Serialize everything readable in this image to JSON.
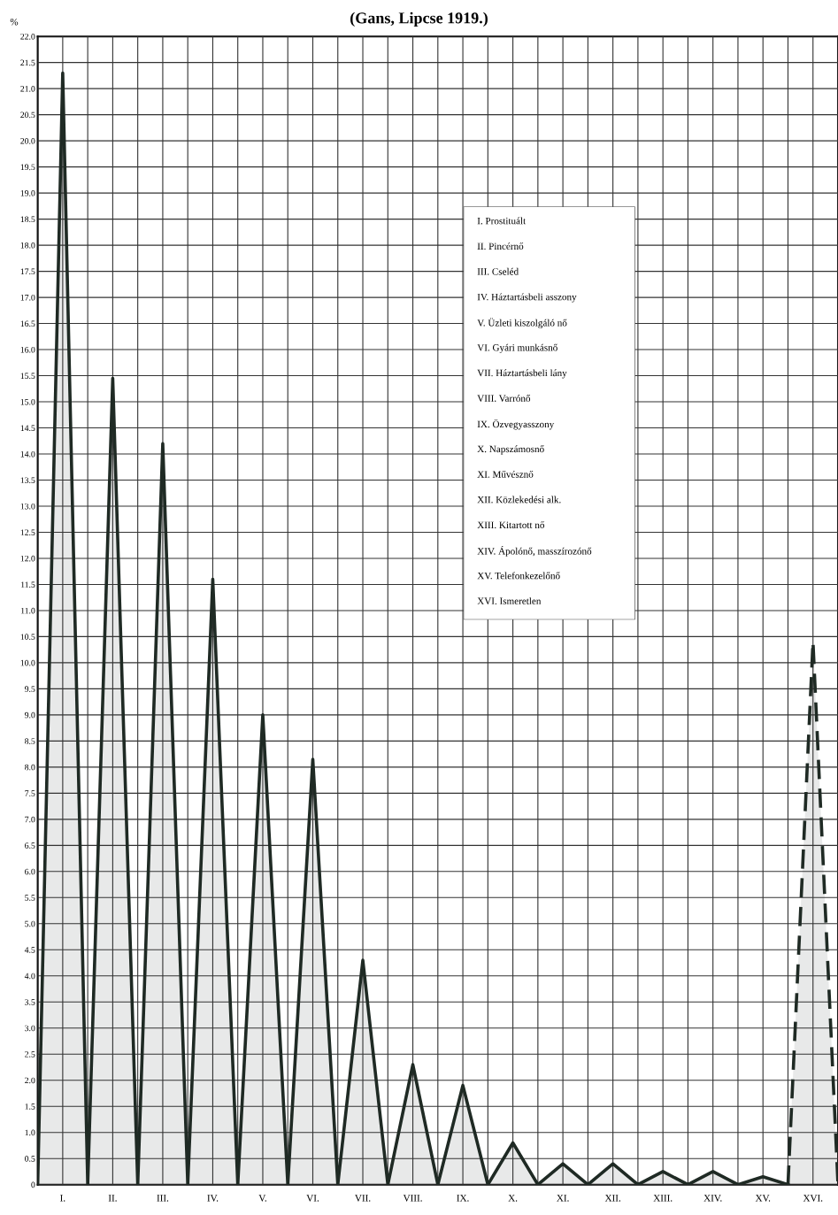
{
  "chart_data": {
    "type": "area",
    "title": "(Gans, Lipcse 1919.)",
    "ylabel": "%",
    "categories": [
      null,
      "I.",
      null,
      "II.",
      null,
      "III.",
      null,
      "IV.",
      null,
      "V.",
      null,
      "VI.",
      null,
      "VII.",
      null,
      "VIII.",
      null,
      "IX.",
      null,
      "X.",
      null,
      "XI.",
      null,
      "XII.",
      null,
      "XIII.",
      null,
      "XIV.",
      null,
      "XV.",
      null,
      "XVI.",
      null
    ],
    "series": [
      {
        "color": "#1f2a24",
        "line_style": "solid",
        "values": [
          0,
          21.3,
          0,
          15.45,
          0,
          14.2,
          0,
          11.6,
          0,
          9.0,
          0,
          8.15,
          0,
          4.3,
          0,
          2.3,
          0,
          1.9,
          0,
          0.8,
          0,
          0.4,
          0,
          0.4,
          0,
          0.25,
          0,
          0.25,
          0,
          0.15,
          0,
          null,
          null
        ]
      },
      {
        "color": "#1f2a24",
        "line_style": "dashed",
        "values": [
          null,
          null,
          null,
          null,
          null,
          null,
          null,
          null,
          null,
          null,
          null,
          null,
          null,
          null,
          null,
          null,
          null,
          null,
          null,
          null,
          null,
          null,
          null,
          null,
          null,
          null,
          null,
          null,
          null,
          null,
          0,
          10.4,
          0
        ]
      }
    ],
    "ylim": [
      0,
      22
    ],
    "yticks": [
      0,
      {
        "value": 0.5,
        "label": "0.5"
      },
      {
        "value": 1,
        "label": "1.0"
      },
      {
        "value": 1.5,
        "label": "1.5"
      },
      {
        "value": 2,
        "label": "2.0"
      },
      {
        "value": 2.5,
        "label": "2.5"
      },
      {
        "value": 3,
        "label": "3.0"
      },
      {
        "value": 3.5,
        "label": "3.5"
      },
      {
        "value": 4,
        "label": "4.0"
      },
      {
        "value": 4.5,
        "label": "4.5"
      },
      {
        "value": 5,
        "label": "5.0"
      },
      {
        "value": 5.5,
        "label": "5.5"
      },
      {
        "value": 6,
        "label": "6.0"
      },
      {
        "value": 6.5,
        "label": "6.5"
      },
      {
        "value": 7,
        "label": "7.0"
      },
      {
        "value": 7.5,
        "label": "7.5"
      },
      {
        "value": 8,
        "label": "8.0"
      },
      {
        "value": 8.5,
        "label": "8.5"
      },
      {
        "value": 9,
        "label": "9.0"
      },
      {
        "value": 9.5,
        "label": "9.5"
      },
      {
        "value": 10,
        "label": "10.0"
      },
      {
        "value": 10.5,
        "label": "10.5"
      },
      {
        "value": 11,
        "label": "11.0"
      },
      {
        "value": 11.5,
        "label": "11.5"
      },
      {
        "value": 12,
        "label": "12.0"
      },
      {
        "value": 12.5,
        "label": "12.5"
      },
      {
        "value": 13,
        "label": "13.0"
      },
      {
        "value": 13.5,
        "label": "13.5"
      },
      {
        "value": 14,
        "label": "14.0"
      },
      {
        "value": 14.5,
        "label": "14.5"
      },
      {
        "value": 15,
        "label": "15.0"
      },
      {
        "value": 15.5,
        "label": "15.5"
      },
      {
        "value": 16,
        "label": "16.0"
      },
      {
        "value": 16.5,
        "label": "16.5"
      },
      {
        "value": 17,
        "label": "17.0"
      },
      {
        "value": 17.5,
        "label": "17.5"
      },
      {
        "value": 18,
        "label": "18.0"
      },
      {
        "value": 18.5,
        "label": "18.5"
      },
      {
        "value": 19,
        "label": "19.0"
      },
      {
        "value": 19.5,
        "label": "19.5"
      },
      {
        "value": 20,
        "label": "20.0"
      },
      {
        "value": 20.5,
        "label": "20.5"
      },
      {
        "value": 21,
        "label": "21.0"
      },
      {
        "value": 21.5,
        "label": "21.5"
      },
      {
        "value": 22,
        "label": "22.0"
      }
    ],
    "grid": true,
    "annotations": [
      "I. Prostituált",
      "II. Pincérnő",
      "III. Cseléd",
      "IV. Háztartásbeli asszony",
      "V. Üzleti kiszolgáló nő",
      "VI. Gyári munkásnő",
      "VII. Háztartásbeli lány",
      "VIII. Varrónő",
      "IX. Özvegyasszony",
      "X. Napszámosnő",
      "XI. Művésznő",
      "XII. Közlekedési alk.",
      "XIII. Kitartott nő",
      "XIV. Ápolónő, masszírozónő",
      "XV. Telefonkezelőnő",
      "XVI. Ismeretlen"
    ]
  }
}
